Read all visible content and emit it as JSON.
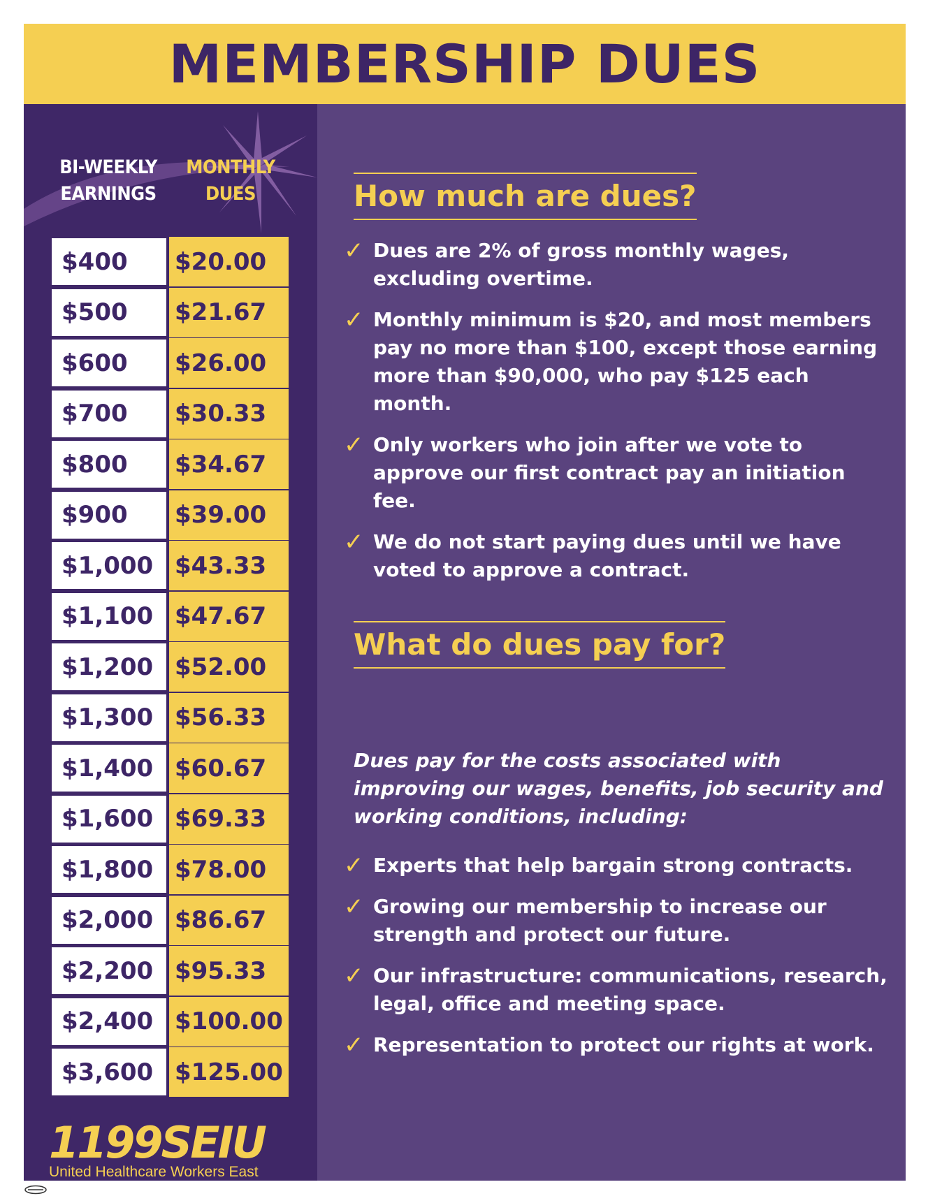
{
  "title": "MEMBERSHIP DUES",
  "table": {
    "earnings_header": "BI-WEEKLY EARNINGS",
    "dues_header": "MONTHLY DUES",
    "rows": [
      {
        "earnings": "$400",
        "dues": "$20.00"
      },
      {
        "earnings": "$500",
        "dues": "$21.67"
      },
      {
        "earnings": "$600",
        "dues": "$26.00"
      },
      {
        "earnings": "$700",
        "dues": "$30.33"
      },
      {
        "earnings": "$800",
        "dues": "$34.67"
      },
      {
        "earnings": "$900",
        "dues": "$39.00"
      },
      {
        "earnings": "$1,000",
        "dues": "$43.33"
      },
      {
        "earnings": "$1,100",
        "dues": "$47.67"
      },
      {
        "earnings": "$1,200",
        "dues": "$52.00"
      },
      {
        "earnings": "$1,300",
        "dues": "$56.33"
      },
      {
        "earnings": "$1,400",
        "dues": "$60.67"
      },
      {
        "earnings": "$1,600",
        "dues": "$69.33"
      },
      {
        "earnings": "$1,800",
        "dues": "$78.00"
      },
      {
        "earnings": "$2,000",
        "dues": "$86.67"
      },
      {
        "earnings": "$2,200",
        "dues": "$95.33"
      },
      {
        "earnings": "$2,400",
        "dues": "$100.00"
      },
      {
        "earnings": "$3,600",
        "dues": "$125.00"
      }
    ]
  },
  "logo": {
    "name": "1199SEIU",
    "subtitle": "United Healthcare Workers East"
  },
  "section1": {
    "heading": "How much are dues?",
    "bullets": [
      "Dues are 2% of gross monthly wages, excluding overtime.",
      "Monthly minimum is $20, and most members pay no more than $100, except those earning more than $90,000, who pay $125 each month.",
      "Only workers who join after we vote to approve our first contract pay an initiation fee.",
      "We do not start paying dues until we have voted to approve a contract."
    ]
  },
  "section2": {
    "heading": "What do dues pay for?",
    "intro": "Dues pay for the costs associated with improving our wages, benefits, job security and working conditions, including:",
    "bullets": [
      "Experts that help bargain strong contracts.",
      "Growing our membership to increase our strength and protect our future.",
      "Our infrastructure: communications, research, legal, office and meeting space.",
      "Representation to protect our rights at work."
    ]
  },
  "icons": {
    "bullet": "checkmark-icon",
    "decoration": "starburst-icon",
    "footer": "union-bug-icon"
  },
  "colors": {
    "purple_dark": "#3f2767",
    "purple_light": "#5a437e",
    "gold": "#f5cf52",
    "title_text": "#3d2566"
  }
}
